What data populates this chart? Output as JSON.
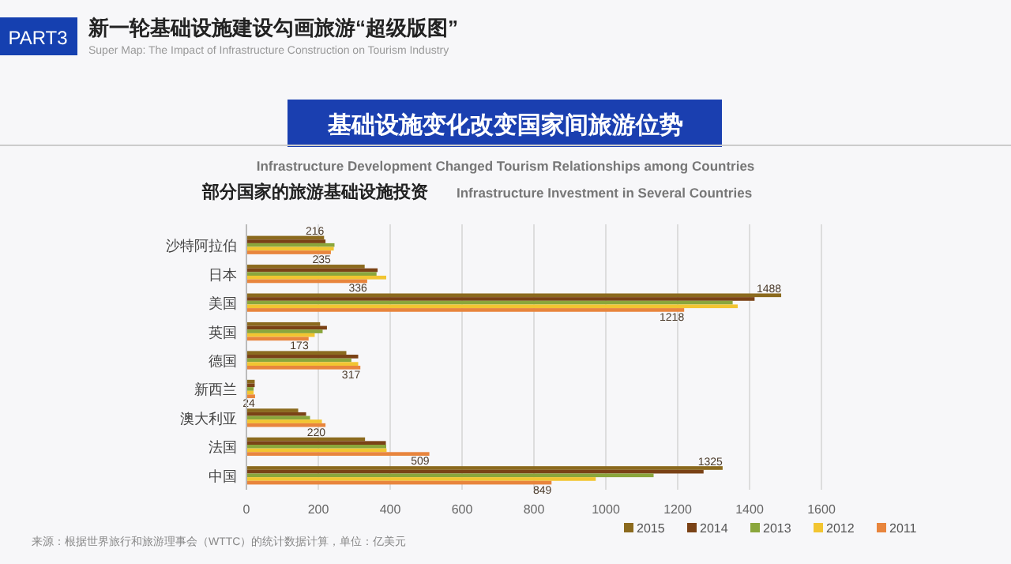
{
  "chart_data": {
    "type": "bar",
    "orientation": "horizontal",
    "title": "新一轮基础设施建设勾画旅游“超级版图”",
    "subtitle": "Super Map: The Impact of Infrastructure Construction on Tourism Industry",
    "annotations": [
      "PART3",
      "基础设施变化改变国家间旅游位势",
      "Infrastructure Development Changed Tourism Relationships among Countries",
      "部分国家的旅游基础设施投资",
      "Infrastructure Investment in Several Countries",
      "来源：根据世界旅行和旅游理事会（WTTC）的统计数据计算，单位：亿美元"
    ],
    "categories": [
      "沙特阿拉伯",
      "日本",
      "美国",
      "英国",
      "德国",
      "新西兰",
      "澳大利亚",
      "法国",
      "中国"
    ],
    "series": [
      {
        "name": "2015",
        "color": "#8b6a1e",
        "values": [
          216,
          329,
          1488,
          205,
          278,
          23,
          144,
          330,
          1325
        ],
        "value_labels": [
          "216",
          null,
          "1488",
          null,
          null,
          null,
          null,
          null,
          "1325"
        ]
      },
      {
        "name": "2014",
        "color": "#7a4216",
        "values": [
          220,
          365,
          1414,
          224,
          311,
          23,
          166,
          388,
          1272
        ]
      },
      {
        "name": "2013",
        "color": "#8aa63c",
        "values": [
          245,
          362,
          1353,
          212,
          292,
          20,
          177,
          389,
          1133
        ]
      },
      {
        "name": "2012",
        "color": "#f2c531",
        "values": [
          243,
          389,
          1367,
          190,
          311,
          20,
          210,
          390,
          972
        ]
      },
      {
        "name": "2011",
        "color": "#e8853d",
        "values": [
          235,
          336,
          1218,
          173,
          317,
          24,
          220,
          509,
          849
        ],
        "value_labels": [
          "235",
          "336",
          "1218",
          "173",
          "317",
          "24",
          "220",
          "509",
          "849"
        ]
      }
    ],
    "xlim": [
      0,
      1600
    ],
    "xticks": [
      0,
      200,
      400,
      600,
      800,
      1000,
      1200,
      1400,
      1600
    ],
    "grid": "x",
    "legend": "bottom"
  }
}
